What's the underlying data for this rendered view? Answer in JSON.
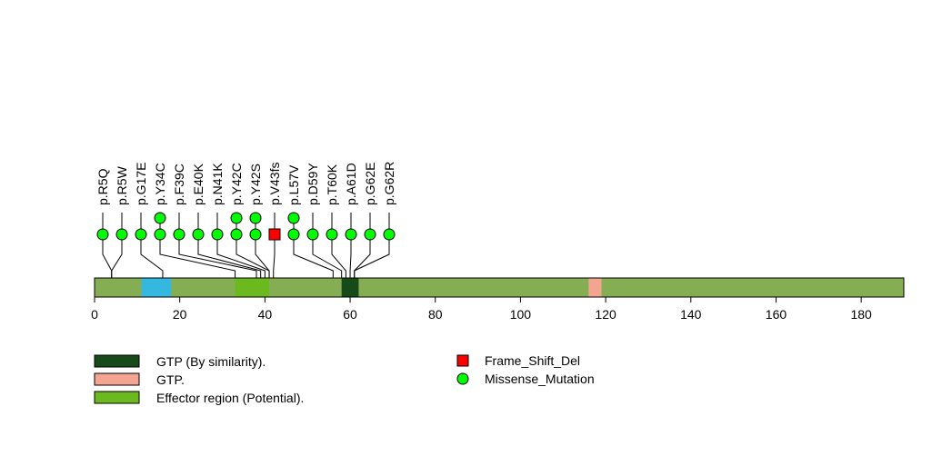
{
  "chart_data": {
    "type": "lollipop",
    "protein_length": 190,
    "axis": {
      "min": 0,
      "max": 190,
      "ticks": [
        0,
        20,
        40,
        60,
        80,
        100,
        120,
        140,
        160,
        180
      ]
    },
    "backbone_color": "#84ad54",
    "domains": [
      {
        "start": 11,
        "end": 18,
        "color": "#35b8e0"
      },
      {
        "start": 33,
        "end": 41,
        "color": "#6cb81f"
      },
      {
        "start": 58,
        "end": 62,
        "color": "#164a19"
      },
      {
        "start": 116,
        "end": 119,
        "color": "#f4a592"
      }
    ],
    "mutations": [
      {
        "label": "p.R5Q",
        "position": 4,
        "count": 1,
        "type": "Missense_Mutation"
      },
      {
        "label": "p.R5W",
        "position": 4,
        "count": 1,
        "type": "Missense_Mutation"
      },
      {
        "label": "p.G17E",
        "position": 16,
        "count": 1,
        "type": "Missense_Mutation"
      },
      {
        "label": "p.Y34C",
        "position": 33,
        "count": 2,
        "type": "Missense_Mutation"
      },
      {
        "label": "p.F39C",
        "position": 38,
        "count": 1,
        "type": "Missense_Mutation"
      },
      {
        "label": "p.E40K",
        "position": 39,
        "count": 1,
        "type": "Missense_Mutation"
      },
      {
        "label": "p.N41K",
        "position": 40,
        "count": 1,
        "type": "Missense_Mutation"
      },
      {
        "label": "p.Y42C",
        "position": 41,
        "count": 2,
        "type": "Missense_Mutation"
      },
      {
        "label": "p.Y42S",
        "position": 41,
        "count": 2,
        "type": "Missense_Mutation"
      },
      {
        "label": "p.V43fs",
        "position": 42,
        "count": 1,
        "type": "Frame_Shift_Del"
      },
      {
        "label": "p.L57V",
        "position": 56,
        "count": 2,
        "type": "Missense_Mutation"
      },
      {
        "label": "p.D59Y",
        "position": 58,
        "count": 1,
        "type": "Missense_Mutation"
      },
      {
        "label": "p.T60K",
        "position": 59,
        "count": 1,
        "type": "Missense_Mutation"
      },
      {
        "label": "p.A61D",
        "position": 60,
        "count": 1,
        "type": "Missense_Mutation"
      },
      {
        "label": "p.G62E",
        "position": 61,
        "count": 1,
        "type": "Missense_Mutation"
      },
      {
        "label": "p.G62R",
        "position": 61,
        "count": 1,
        "type": "Missense_Mutation"
      }
    ],
    "legend_domains": [
      {
        "label": "GTP (By similarity).",
        "color": "#164a19"
      },
      {
        "label": "GTP.",
        "color": "#f4a592"
      },
      {
        "label": "Effector region (Potential).",
        "color": "#6cb81f"
      }
    ],
    "legend_mutations": [
      {
        "label": "Frame_Shift_Del",
        "shape": "square",
        "color": "#ff0000"
      },
      {
        "label": "Missense_Mutation",
        "shape": "circle",
        "color": "#00ff00"
      }
    ]
  }
}
